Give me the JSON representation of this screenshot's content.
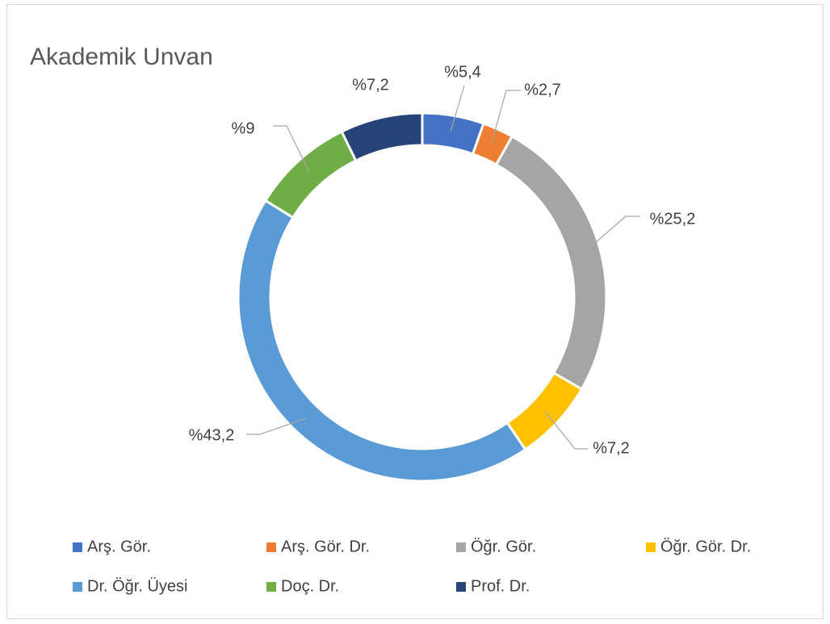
{
  "chart_data": {
    "type": "donut",
    "title": "Akademik Unvan",
    "categories": [
      "Arş. Gör.",
      "Arş. Gör. Dr.",
      "Öğr. Gör.",
      "Öğr. Gör. Dr.",
      "Dr. Öğr. Üyesi",
      "Doç. Dr.",
      "Prof. Dr."
    ],
    "values": [
      5.4,
      2.7,
      25.2,
      7.2,
      43.2,
      9,
      7.2
    ],
    "value_labels": [
      "%5,4",
      "%2,7",
      "%25,2",
      "%7,2",
      "%43,2",
      "%9",
      "%7,2"
    ],
    "colors": [
      "#4472c4",
      "#ed7d31",
      "#a5a5a5",
      "#ffc000",
      "#5b9bd5",
      "#70ad47",
      "#264478"
    ],
    "legend": "bottom"
  }
}
